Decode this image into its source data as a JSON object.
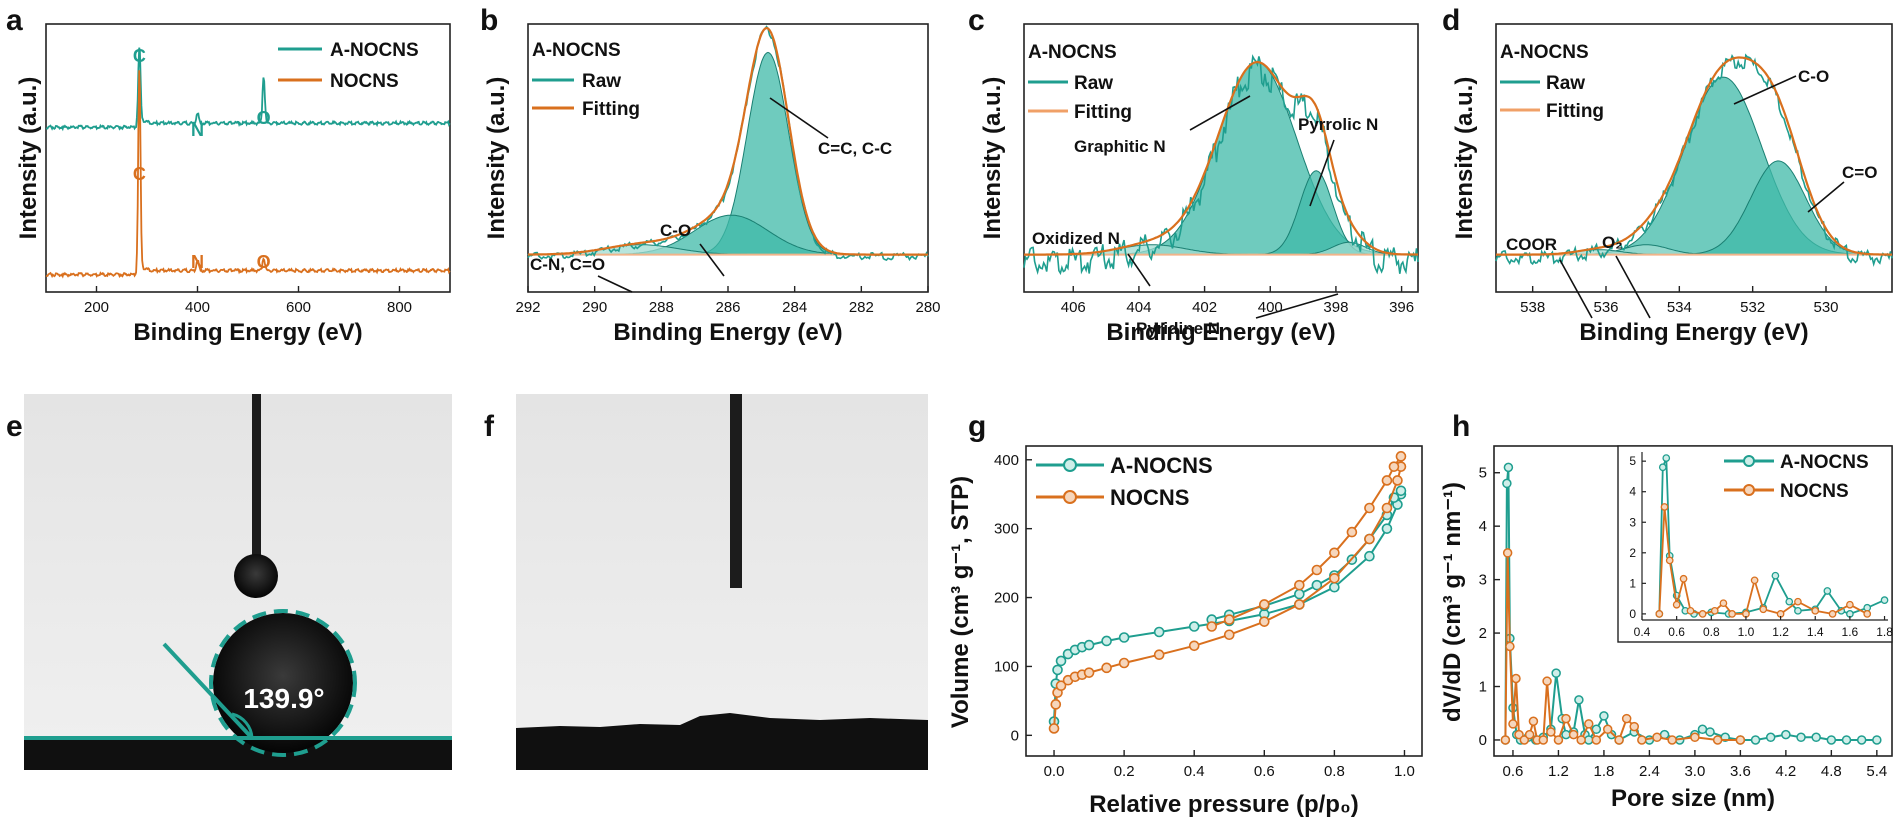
{
  "colors": {
    "teal": "#1f9e8f",
    "orange": "#d9701e",
    "teal_fill": "#3fb9a8",
    "teal_fill_light": "#9fdcd2"
  },
  "chart_data": [
    {
      "id": "a",
      "type": "line",
      "letter": "a",
      "xlabel": "Binding Energy (eV)",
      "ylabel": "Intensity (a.u.)",
      "xlim": [
        100,
        900
      ],
      "xticks": [
        200,
        400,
        600,
        800
      ],
      "series": [
        {
          "name": "A-NOCNS",
          "color": "teal",
          "baseline": 0.63,
          "peaks": [
            [
              284.8,
              0.28
            ],
            [
              400,
              0.04
            ],
            [
              531,
              0.18
            ]
          ]
        },
        {
          "name": "NOCNS",
          "color": "orange",
          "baseline": 0.08,
          "peaks": [
            [
              284.8,
              0.75
            ],
            [
              400,
              0.04
            ],
            [
              531,
              0.05
            ]
          ]
        }
      ],
      "peak_labels": [
        {
          "text": "C",
          "x": 284.8,
          "series": "A-NOCNS"
        },
        {
          "text": "N",
          "x": 400,
          "series": "A-NOCNS"
        },
        {
          "text": "O",
          "x": 531,
          "series": "A-NOCNS"
        },
        {
          "text": "C",
          "x": 284.8,
          "series": "NOCNS"
        },
        {
          "text": "N",
          "x": 400,
          "series": "NOCNS"
        },
        {
          "text": "O",
          "x": 531,
          "series": "NOCNS"
        }
      ],
      "legend": [
        "A-NOCNS",
        "NOCNS"
      ]
    },
    {
      "id": "b",
      "type": "area",
      "letter": "b",
      "sample": "A-NOCNS",
      "xlabel": "Binding Energy (eV)",
      "ylabel": "Intensity (a.u.)",
      "xlim": [
        292,
        280
      ],
      "xticks": [
        292,
        290,
        288,
        286,
        284,
        282,
        280
      ],
      "components": [
        {
          "label": "C=C, C-C",
          "center": 284.8,
          "height": 0.82,
          "width": 0.62
        },
        {
          "label": "C-O",
          "center": 285.9,
          "height": 0.16,
          "width": 1.1
        },
        {
          "label": "C-N, C=O",
          "center": 288.6,
          "height": 0.04,
          "width": 1.1
        }
      ],
      "legend": [
        "Raw",
        "Fitting"
      ]
    },
    {
      "id": "c",
      "type": "area",
      "letter": "c",
      "sample": "A-NOCNS",
      "xlabel": "Binding Energy (eV)",
      "ylabel": "Intensity (a.u.)",
      "xlim": [
        407.5,
        395.5
      ],
      "xticks": [
        406,
        404,
        402,
        400,
        398,
        396
      ],
      "components": [
        {
          "label": "Graphitic N",
          "center": 400.4,
          "height": 0.78,
          "width": 1.2
        },
        {
          "label": "Pyrrolic N",
          "center": 398.6,
          "height": 0.34,
          "width": 0.5
        },
        {
          "label": "Pyridine N",
          "center": 397.6,
          "height": 0.05,
          "width": 0.5
        },
        {
          "label": "Oxidized N",
          "center": 403.6,
          "height": 0.04,
          "width": 1.0
        }
      ],
      "legend": [
        "Raw",
        "Fitting"
      ]
    },
    {
      "id": "d",
      "type": "area",
      "letter": "d",
      "sample": "A-NOCNS",
      "xlabel": "Binding Energy (eV)",
      "ylabel": "Intensity (a.u.)",
      "xlim": [
        539,
        528.2
      ],
      "xticks": [
        538,
        536,
        534,
        532,
        530
      ],
      "components": [
        {
          "label": "C-O",
          "center": 532.8,
          "height": 0.72,
          "width": 1.05
        },
        {
          "label": "C=O",
          "center": 531.3,
          "height": 0.38,
          "width": 0.75
        },
        {
          "label": "O₂",
          "center": 534.9,
          "height": 0.04,
          "width": 0.6
        },
        {
          "label": "COOR",
          "center": 536.2,
          "height": 0.02,
          "width": 0.6
        }
      ],
      "legend": [
        "Raw",
        "Fitting"
      ]
    },
    {
      "id": "g",
      "type": "line",
      "letter": "g",
      "xlabel": "Relative pressure (p/p₀)",
      "ylabel": "Volume (cm³ g⁻¹, STP)",
      "xlim": [
        -0.08,
        1.05
      ],
      "ylim": [
        -30,
        420
      ],
      "xticks": [
        0.0,
        0.2,
        0.4,
        0.6,
        0.8,
        1.0
      ],
      "yticks": [
        0,
        100,
        200,
        300,
        400
      ],
      "series": [
        {
          "name": "A-NOCNS",
          "color": "teal",
          "adsorption": [
            [
              0.0,
              20
            ],
            [
              0.005,
              75
            ],
            [
              0.01,
              95
            ],
            [
              0.02,
              108
            ],
            [
              0.04,
              118
            ],
            [
              0.06,
              124
            ],
            [
              0.08,
              128
            ],
            [
              0.1,
              131
            ],
            [
              0.15,
              137
            ],
            [
              0.2,
              142
            ],
            [
              0.3,
              150
            ],
            [
              0.4,
              158
            ],
            [
              0.5,
              166
            ],
            [
              0.6,
              176
            ],
            [
              0.7,
              190
            ],
            [
              0.8,
              215
            ],
            [
              0.9,
              260
            ],
            [
              0.95,
              300
            ],
            [
              0.98,
              335
            ],
            [
              0.99,
              350
            ]
          ],
          "desorption": [
            [
              0.99,
              355
            ],
            [
              0.97,
              345
            ],
            [
              0.95,
              320
            ],
            [
              0.9,
              285
            ],
            [
              0.85,
              255
            ],
            [
              0.8,
              232
            ],
            [
              0.75,
              218
            ],
            [
              0.7,
              205
            ],
            [
              0.6,
              188
            ],
            [
              0.5,
              175
            ],
            [
              0.45,
              168
            ]
          ]
        },
        {
          "name": "NOCNS",
          "color": "orange",
          "adsorption": [
            [
              0.0,
              10
            ],
            [
              0.005,
              45
            ],
            [
              0.01,
              62
            ],
            [
              0.02,
              72
            ],
            [
              0.04,
              80
            ],
            [
              0.06,
              85
            ],
            [
              0.08,
              88
            ],
            [
              0.1,
              91
            ],
            [
              0.15,
              98
            ],
            [
              0.2,
              105
            ],
            [
              0.3,
              117
            ],
            [
              0.4,
              130
            ],
            [
              0.5,
              146
            ],
            [
              0.6,
              165
            ],
            [
              0.7,
              190
            ],
            [
              0.8,
              228
            ],
            [
              0.9,
              285
            ],
            [
              0.95,
              330
            ],
            [
              0.98,
              370
            ],
            [
              0.99,
              390
            ]
          ],
          "desorption": [
            [
              0.99,
              405
            ],
            [
              0.97,
              390
            ],
            [
              0.95,
              370
            ],
            [
              0.9,
              330
            ],
            [
              0.85,
              295
            ],
            [
              0.8,
              265
            ],
            [
              0.75,
              240
            ],
            [
              0.7,
              218
            ],
            [
              0.6,
              190
            ],
            [
              0.5,
              168
            ],
            [
              0.45,
              158
            ]
          ]
        }
      ],
      "legend": [
        "A-NOCNS",
        "NOCNS"
      ]
    },
    {
      "id": "h",
      "type": "line",
      "letter": "h",
      "xlabel": "Pore size (nm)",
      "ylabel": "dV/dD (cm³ g⁻¹ nm⁻¹)",
      "xlim": [
        0.35,
        5.6
      ],
      "ylim": [
        -0.3,
        5.5
      ],
      "xticks": [
        0.6,
        1.2,
        1.8,
        2.4,
        3.0,
        3.6,
        4.2,
        4.8,
        5.4
      ],
      "yticks": [
        0,
        1,
        2,
        3,
        4,
        5
      ],
      "series": [
        {
          "name": "A-NOCNS",
          "color": "teal",
          "points": [
            [
              0.5,
              0
            ],
            [
              0.52,
              4.8
            ],
            [
              0.54,
              5.1
            ],
            [
              0.56,
              1.9
            ],
            [
              0.6,
              0.6
            ],
            [
              0.65,
              0.1
            ],
            [
              0.7,
              0
            ],
            [
              0.8,
              0.05
            ],
            [
              0.9,
              0
            ],
            [
              1.0,
              0.05
            ],
            [
              1.1,
              0.2
            ],
            [
              1.17,
              1.25
            ],
            [
              1.25,
              0.4
            ],
            [
              1.3,
              0.1
            ],
            [
              1.4,
              0.15
            ],
            [
              1.47,
              0.75
            ],
            [
              1.55,
              0.1
            ],
            [
              1.6,
              0
            ],
            [
              1.7,
              0.2
            ],
            [
              1.8,
              0.45
            ],
            [
              1.9,
              0.1
            ],
            [
              2.0,
              0
            ],
            [
              2.2,
              0.15
            ],
            [
              2.4,
              0
            ],
            [
              2.6,
              0.1
            ],
            [
              2.8,
              0
            ],
            [
              3.0,
              0.1
            ],
            [
              3.1,
              0.2
            ],
            [
              3.2,
              0.15
            ],
            [
              3.4,
              0.05
            ],
            [
              3.6,
              0
            ],
            [
              3.8,
              0
            ],
            [
              4.0,
              0.05
            ],
            [
              4.2,
              0.1
            ],
            [
              4.4,
              0.05
            ],
            [
              4.6,
              0.05
            ],
            [
              4.8,
              0
            ],
            [
              5.0,
              0
            ],
            [
              5.2,
              0
            ],
            [
              5.4,
              0
            ]
          ]
        },
        {
          "name": "NOCNS",
          "color": "orange",
          "points": [
            [
              0.5,
              0
            ],
            [
              0.53,
              3.5
            ],
            [
              0.56,
              1.75
            ],
            [
              0.6,
              0.3
            ],
            [
              0.64,
              1.15
            ],
            [
              0.68,
              0.1
            ],
            [
              0.75,
              0
            ],
            [
              0.82,
              0.1
            ],
            [
              0.87,
              0.35
            ],
            [
              0.92,
              0
            ],
            [
              1.0,
              0
            ],
            [
              1.05,
              1.1
            ],
            [
              1.1,
              0.15
            ],
            [
              1.2,
              0
            ],
            [
              1.3,
              0.4
            ],
            [
              1.4,
              0.1
            ],
            [
              1.5,
              0
            ],
            [
              1.6,
              0.3
            ],
            [
              1.7,
              0
            ],
            [
              1.85,
              0.2
            ],
            [
              2.0,
              0
            ],
            [
              2.1,
              0.4
            ],
            [
              2.2,
              0.25
            ],
            [
              2.3,
              0
            ],
            [
              2.5,
              0.05
            ],
            [
              2.7,
              0
            ],
            [
              3.0,
              0.05
            ],
            [
              3.3,
              0
            ],
            [
              3.6,
              0
            ]
          ]
        }
      ],
      "inset": {
        "xlim": [
          0.4,
          1.82
        ],
        "ylim": [
          -0.2,
          5.3
        ],
        "xticks": [
          0.4,
          0.6,
          0.8,
          1.0,
          1.2,
          1.4,
          1.6,
          1.8
        ],
        "yticks": [
          0,
          1,
          2,
          3,
          4,
          5
        ]
      },
      "legend": [
        "A-NOCNS",
        "NOCNS"
      ]
    }
  ],
  "photos": [
    {
      "letter": "e",
      "contact_angle": "139.9°"
    },
    {
      "letter": "f"
    }
  ]
}
